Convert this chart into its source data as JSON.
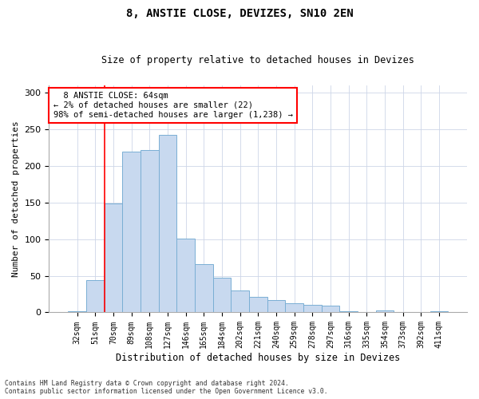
{
  "title": "8, ANSTIE CLOSE, DEVIZES, SN10 2EN",
  "subtitle": "Size of property relative to detached houses in Devizes",
  "xlabel": "Distribution of detached houses by size in Devizes",
  "ylabel": "Number of detached properties",
  "bar_color": "#c8d9ef",
  "bar_edge_color": "#7aafd4",
  "categories": [
    "32sqm",
    "51sqm",
    "70sqm",
    "89sqm",
    "108sqm",
    "127sqm",
    "146sqm",
    "165sqm",
    "184sqm",
    "202sqm",
    "221sqm",
    "240sqm",
    "259sqm",
    "278sqm",
    "297sqm",
    "316sqm",
    "335sqm",
    "354sqm",
    "373sqm",
    "392sqm",
    "411sqm"
  ],
  "values": [
    2,
    44,
    149,
    219,
    222,
    242,
    101,
    66,
    47,
    30,
    21,
    17,
    12,
    10,
    9,
    2,
    0,
    3,
    1,
    0,
    2
  ],
  "property_label": "8 ANSTIE CLOSE: 64sqm",
  "pct_smaller": 2,
  "n_smaller": 22,
  "pct_larger_semi": 98,
  "n_larger_semi": 1238,
  "ylim": [
    0,
    310
  ],
  "yticks": [
    0,
    50,
    100,
    150,
    200,
    250,
    300
  ],
  "footer_line1": "Contains HM Land Registry data © Crown copyright and database right 2024.",
  "footer_line2": "Contains public sector information licensed under the Open Government Licence v3.0."
}
